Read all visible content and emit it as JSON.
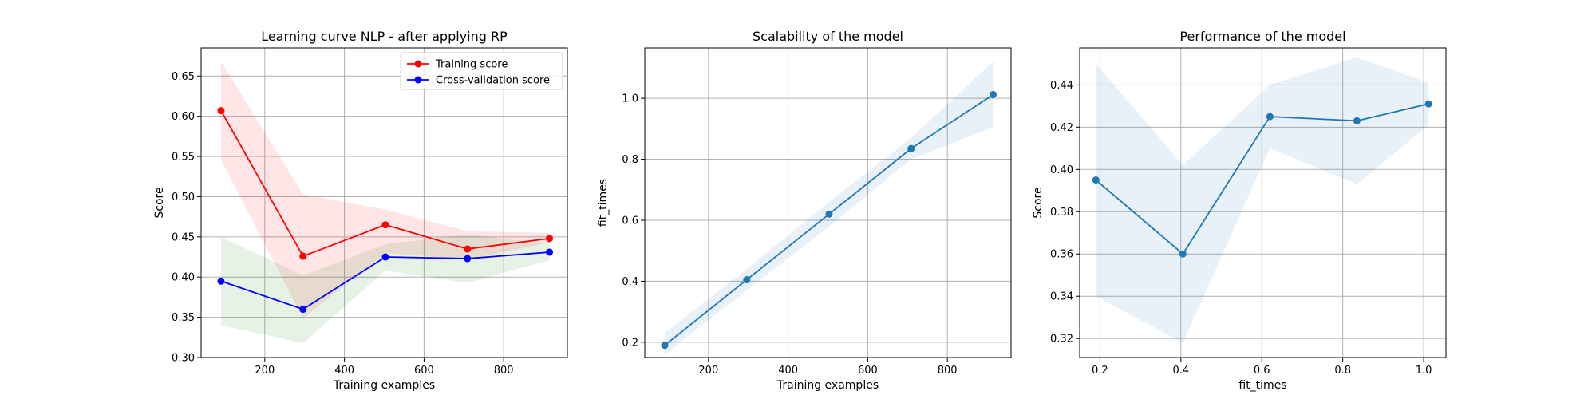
{
  "chart_data": [
    {
      "type": "line",
      "title": "Learning curve NLP - after applying RP",
      "xlabel": "Training examples",
      "ylabel": "Score",
      "xlim": [
        40,
        960
      ],
      "ylim": [
        0.3,
        0.685
      ],
      "xticks": [
        200,
        400,
        600,
        800
      ],
      "yticks": [
        0.3,
        0.35,
        0.4,
        0.45,
        0.5,
        0.55,
        0.6,
        0.65
      ],
      "xtick_labels": [
        "200",
        "400",
        "600",
        "800"
      ],
      "ytick_labels": [
        "0.30",
        "0.35",
        "0.40",
        "0.45",
        "0.50",
        "0.55",
        "0.60",
        "0.65"
      ],
      "grid": true,
      "legend_position": "top-right",
      "x": [
        90,
        296,
        503,
        709,
        915
      ],
      "series": [
        {
          "name": "Training score",
          "color": "#ff0000",
          "band_color": "#ff0000",
          "values": [
            0.607,
            0.426,
            0.465,
            0.435,
            0.448
          ],
          "lower": [
            0.546,
            0.349,
            0.43,
            0.422,
            0.443
          ],
          "upper": [
            0.668,
            0.503,
            0.484,
            0.457,
            0.455
          ]
        },
        {
          "name": "Cross-validation score",
          "color": "#0000ff",
          "band_color": "#008000",
          "values": [
            0.395,
            0.36,
            0.425,
            0.423,
            0.431
          ],
          "lower": [
            0.34,
            0.318,
            0.408,
            0.393,
            0.421
          ],
          "upper": [
            0.45,
            0.402,
            0.441,
            0.453,
            0.441
          ]
        }
      ]
    },
    {
      "type": "line",
      "title": "Scalability of the model",
      "xlabel": "Training examples",
      "ylabel": "fit_times",
      "xlim": [
        40,
        960
      ],
      "ylim": [
        0.15,
        1.165
      ],
      "xticks": [
        200,
        400,
        600,
        800
      ],
      "yticks": [
        0.2,
        0.4,
        0.6,
        0.8,
        1.0
      ],
      "xtick_labels": [
        "200",
        "400",
        "600",
        "800"
      ],
      "ytick_labels": [
        "0.2",
        "0.4",
        "0.6",
        "0.8",
        "1.0"
      ],
      "grid": true,
      "x": [
        90,
        296,
        503,
        709,
        915
      ],
      "series": [
        {
          "name": "",
          "color": "#1f77b4",
          "band_color": "#1f77b4",
          "values": [
            0.19,
            0.405,
            0.62,
            0.835,
            1.012
          ],
          "lower": [
            0.16,
            0.37,
            0.58,
            0.8,
            0.905
          ],
          "upper": [
            0.23,
            0.44,
            0.66,
            0.87,
            1.12
          ]
        }
      ]
    },
    {
      "type": "line",
      "title": "Performance of the model",
      "xlabel": "fit_times",
      "ylabel": "Score",
      "xlim": [
        0.15,
        1.055
      ],
      "ylim": [
        0.311,
        0.4575
      ],
      "xticks": [
        0.2,
        0.4,
        0.6,
        0.8,
        1.0
      ],
      "yticks": [
        0.32,
        0.34,
        0.36,
        0.38,
        0.4,
        0.42,
        0.44
      ],
      "xtick_labels": [
        "0.2",
        "0.4",
        "0.6",
        "0.8",
        "1.0"
      ],
      "ytick_labels": [
        "0.32",
        "0.34",
        "0.36",
        "0.38",
        "0.40",
        "0.42",
        "0.44"
      ],
      "grid": true,
      "x": [
        0.19,
        0.405,
        0.62,
        0.835,
        1.012
      ],
      "series": [
        {
          "name": "",
          "color": "#1f77b4",
          "band_color": "#1f77b4",
          "values": [
            0.395,
            0.36,
            0.425,
            0.423,
            0.431
          ],
          "lower": [
            0.34,
            0.318,
            0.41,
            0.393,
            0.421
          ],
          "upper": [
            0.45,
            0.402,
            0.44,
            0.453,
            0.441
          ]
        }
      ]
    }
  ]
}
